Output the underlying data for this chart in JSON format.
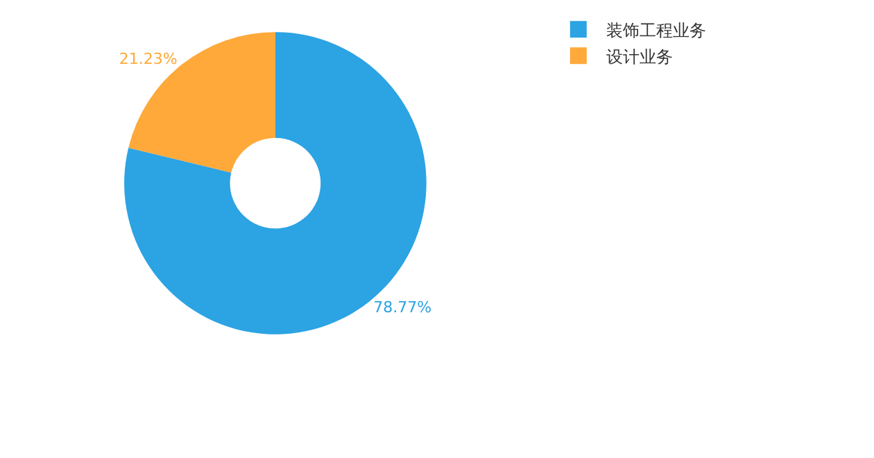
{
  "chart_data": {
    "type": "donut",
    "categories": [
      "装饰工程业务",
      "设计业务"
    ],
    "values": [
      78.77,
      21.23
    ],
    "value_labels": [
      "78.77%",
      "21.23%"
    ],
    "colors": [
      "#2ca3e3",
      "#fea93a"
    ],
    "legend": "top right"
  }
}
